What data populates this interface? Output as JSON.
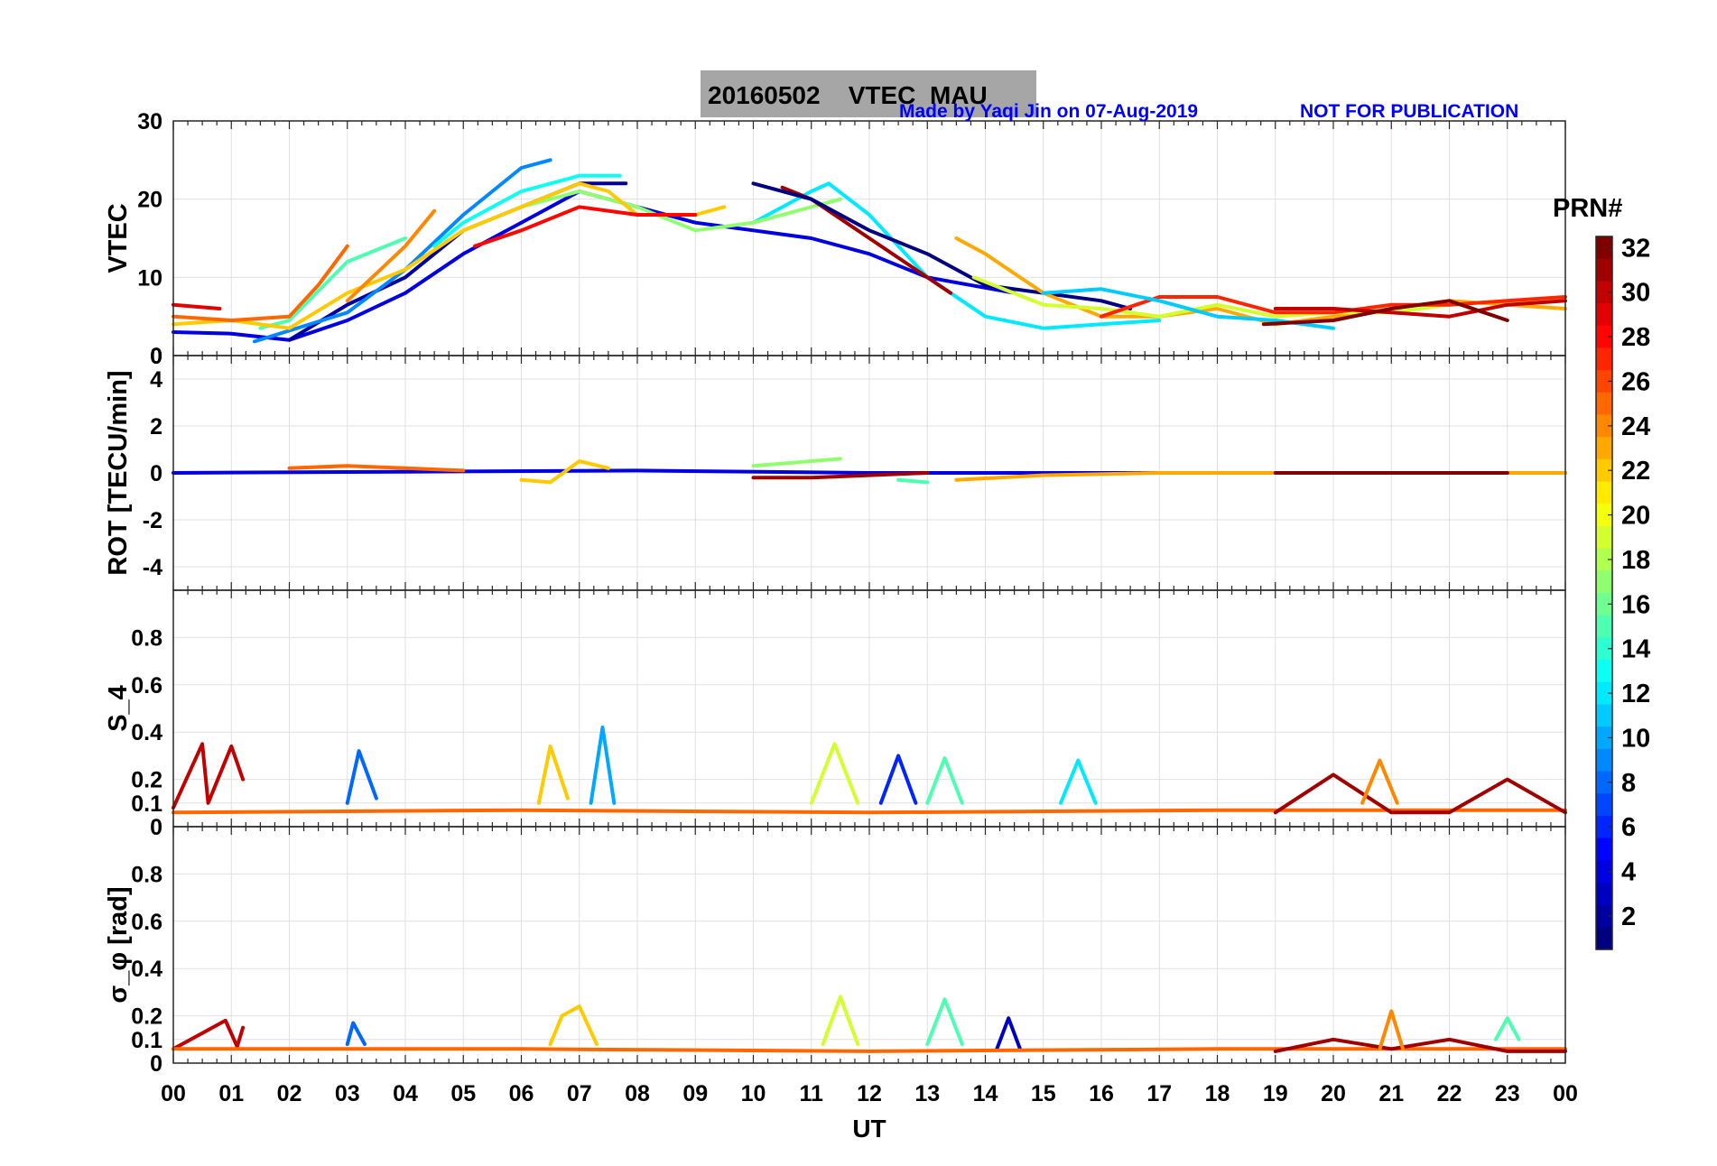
{
  "figure": {
    "title_date": "20160502",
    "title_label": "VTEC  MAU",
    "credit": "Made by Yaqi Jin on 07-Aug-2019",
    "notice": "NOT FOR PUBLICATION",
    "xlabel": "UT",
    "x_ticks": [
      "00",
      "01",
      "02",
      "03",
      "04",
      "05",
      "06",
      "07",
      "08",
      "09",
      "10",
      "11",
      "12",
      "13",
      "14",
      "15",
      "16",
      "17",
      "18",
      "19",
      "20",
      "21",
      "22",
      "23",
      "00"
    ],
    "colorbar": {
      "label": "PRN#",
      "range": [
        1,
        32
      ],
      "ticks": [
        "2",
        "4",
        "6",
        "8",
        "10",
        "12",
        "14",
        "16",
        "18",
        "20",
        "22",
        "24",
        "26",
        "28",
        "30",
        "32"
      ],
      "colormap": "jet"
    }
  },
  "chart_data": [
    {
      "type": "line",
      "panel": "vtec",
      "ylabel": "VTEC",
      "xlim": [
        0,
        24
      ],
      "ylim": [
        0,
        30
      ],
      "yticks": [
        "0",
        "10",
        "20",
        "30"
      ],
      "series": [
        {
          "prn": 4,
          "x": [
            0,
            1,
            2,
            3,
            4,
            5,
            6,
            7,
            8,
            9,
            10,
            11,
            12,
            13,
            14.5
          ],
          "y": [
            3,
            2.8,
            2,
            4.5,
            8,
            13,
            17,
            21,
            19,
            17,
            16,
            15,
            13,
            10,
            8
          ]
        },
        {
          "prn": 2,
          "x": [
            2,
            3,
            4,
            5,
            6,
            7,
            7.8
          ],
          "y": [
            2,
            6.5,
            10,
            16,
            19,
            22,
            22
          ]
        },
        {
          "prn": 9,
          "x": [
            1.4,
            3,
            4,
            5,
            6,
            6.5
          ],
          "y": [
            1.8,
            5.5,
            11,
            18,
            24,
            25
          ]
        },
        {
          "prn": 13,
          "x": [
            4.5,
            5,
            6,
            7,
            7.7
          ],
          "y": [
            14,
            17,
            21,
            23,
            23
          ]
        },
        {
          "prn": 12,
          "x": [
            10,
            11,
            11.3,
            12,
            13,
            14,
            15,
            16,
            17
          ],
          "y": [
            17,
            21,
            22,
            18,
            10,
            5,
            3.5,
            4,
            4.5
          ]
        },
        {
          "prn": 17,
          "x": [
            5,
            6,
            7,
            7.5,
            8,
            9,
            10,
            11,
            11.5
          ],
          "y": [
            16,
            19,
            21,
            20,
            19,
            16,
            17,
            19,
            20
          ]
        },
        {
          "prn": 15,
          "x": [
            1.5,
            2,
            3,
            4
          ],
          "y": [
            3.5,
            4.5,
            12,
            15
          ]
        },
        {
          "prn": 22,
          "x": [
            0,
            1,
            2,
            3,
            4,
            5,
            6,
            7,
            7.5,
            8,
            9,
            9.5
          ],
          "y": [
            4,
            4.5,
            3.5,
            8,
            11,
            16,
            19,
            22,
            21,
            18,
            18,
            19
          ]
        },
        {
          "prn": 25,
          "x": [
            0,
            1,
            2,
            2.5,
            3
          ],
          "y": [
            5,
            4.5,
            5,
            9,
            14
          ]
        },
        {
          "prn": 24,
          "x": [
            3,
            4,
            4.5
          ],
          "y": [
            7,
            14,
            18.5
          ]
        },
        {
          "prn": 28,
          "x": [
            5.2,
            6,
            7,
            8,
            9
          ],
          "y": [
            14,
            16,
            19,
            18,
            18
          ]
        },
        {
          "prn": 31,
          "x": [
            10.5,
            11,
            12,
            13,
            13.4
          ],
          "y": [
            21.5,
            20,
            15,
            10,
            8
          ]
        },
        {
          "prn": 1,
          "x": [
            10,
            11,
            12,
            13,
            14,
            15,
            16,
            16.5
          ],
          "y": [
            22,
            20,
            16,
            13,
            9,
            8,
            7,
            6
          ]
        },
        {
          "prn": 23,
          "x": [
            13.5,
            14,
            15,
            16,
            17,
            18,
            19,
            20,
            21,
            22,
            23,
            24
          ],
          "y": [
            15,
            13,
            8,
            5,
            5,
            6,
            4,
            5,
            6,
            7,
            6.5,
            6
          ]
        },
        {
          "prn": 19,
          "x": [
            13.8,
            15,
            16,
            17,
            18,
            19,
            20,
            21,
            22,
            23,
            24
          ],
          "y": [
            10,
            6.5,
            6,
            5,
            6.5,
            5,
            5.5,
            5.5,
            6.5,
            7,
            7
          ]
        },
        {
          "prn": 27,
          "x": [
            16,
            17,
            18,
            19,
            20,
            21,
            22,
            23,
            24
          ],
          "y": [
            5,
            7.5,
            7.5,
            5.5,
            5.5,
            6.5,
            6.5,
            7,
            7.5
          ]
        },
        {
          "prn": 11,
          "x": [
            15,
            16,
            17,
            18,
            19,
            20
          ],
          "y": [
            8,
            8.5,
            7,
            5,
            4.5,
            3.5
          ]
        },
        {
          "prn": 30,
          "x": [
            19,
            20,
            21,
            22,
            23,
            24
          ],
          "y": [
            6,
            6,
            5.5,
            5,
            6.5,
            7
          ]
        },
        {
          "prn": 32,
          "x": [
            18.8,
            20,
            21,
            22,
            23
          ],
          "y": [
            4,
            4.5,
            6,
            7,
            4.5
          ]
        },
        {
          "prn": 29,
          "x": [
            0,
            0.8
          ],
          "y": [
            6.5,
            6
          ]
        }
      ]
    },
    {
      "type": "line",
      "panel": "rot",
      "ylabel": "ROT [TECU/min]",
      "xlim": [
        0,
        24
      ],
      "ylim": [
        -5,
        5
      ],
      "yticks": [
        "-4",
        "-2",
        "0",
        "2",
        "4"
      ],
      "series": [
        {
          "prn": 4,
          "x": [
            0,
            4,
            8,
            12,
            16,
            20,
            24
          ],
          "y": [
            0,
            0.05,
            0.1,
            0,
            0,
            0,
            0
          ]
        },
        {
          "prn": 25,
          "x": [
            2,
            3,
            4,
            5
          ],
          "y": [
            0.2,
            0.3,
            0.2,
            0.1
          ]
        },
        {
          "prn": 22,
          "x": [
            6,
            6.5,
            7,
            7.5
          ],
          "y": [
            -0.3,
            -0.4,
            0.5,
            0.2
          ]
        },
        {
          "prn": 17,
          "x": [
            10,
            11,
            11.5
          ],
          "y": [
            0.3,
            0.5,
            0.6
          ]
        },
        {
          "prn": 31,
          "x": [
            10,
            11,
            12,
            13
          ],
          "y": [
            -0.2,
            -0.2,
            -0.1,
            0
          ]
        },
        {
          "prn": 15,
          "x": [
            12.5,
            13
          ],
          "y": [
            -0.3,
            -0.4
          ]
        },
        {
          "prn": 23,
          "x": [
            13.5,
            15,
            17,
            19,
            21,
            23,
            24
          ],
          "y": [
            -0.3,
            -0.1,
            0,
            0,
            0,
            0,
            0
          ]
        },
        {
          "prn": 32,
          "x": [
            19,
            21,
            23
          ],
          "y": [
            0,
            0,
            0
          ]
        }
      ]
    },
    {
      "type": "line",
      "panel": "s4",
      "ylabel": "S_4",
      "xlim": [
        0,
        24
      ],
      "ylim": [
        0,
        1
      ],
      "yticks": [
        "0",
        "0.1",
        "0.2",
        "0.4",
        "0.6",
        "0.8"
      ],
      "series": [
        {
          "prn": 30,
          "x": [
            0,
            0.5,
            0.6,
            1,
            1.2
          ],
          "y": [
            0.08,
            0.35,
            0.1,
            0.34,
            0.2
          ]
        },
        {
          "prn": 8,
          "x": [
            3,
            3.2,
            3.5
          ],
          "y": [
            0.1,
            0.32,
            0.12
          ]
        },
        {
          "prn": 22,
          "x": [
            6.3,
            6.5,
            6.8
          ],
          "y": [
            0.1,
            0.34,
            0.12
          ]
        },
        {
          "prn": 10,
          "x": [
            7.2,
            7.4,
            7.6
          ],
          "y": [
            0.1,
            0.42,
            0.1
          ]
        },
        {
          "prn": 19,
          "x": [
            11,
            11.4,
            11.8
          ],
          "y": [
            0.1,
            0.35,
            0.1
          ]
        },
        {
          "prn": 6,
          "x": [
            12.2,
            12.5,
            12.8
          ],
          "y": [
            0.1,
            0.3,
            0.1
          ]
        },
        {
          "prn": 15,
          "x": [
            13,
            13.3,
            13.6
          ],
          "y": [
            0.1,
            0.29,
            0.1
          ]
        },
        {
          "prn": 12,
          "x": [
            15.3,
            15.6,
            15.9
          ],
          "y": [
            0.1,
            0.28,
            0.1
          ]
        },
        {
          "prn": 25,
          "x": [
            0,
            6,
            12,
            18,
            24
          ],
          "y": [
            0.06,
            0.07,
            0.06,
            0.07,
            0.07
          ]
        },
        {
          "prn": 31,
          "x": [
            19,
            20,
            21,
            22,
            23,
            24
          ],
          "y": [
            0.06,
            0.22,
            0.06,
            0.06,
            0.2,
            0.06
          ]
        },
        {
          "prn": 24,
          "x": [
            20.5,
            20.8,
            21.1
          ],
          "y": [
            0.1,
            0.28,
            0.1
          ]
        }
      ]
    },
    {
      "type": "line",
      "panel": "sigma_phi",
      "ylabel": "σ_φ [rad]",
      "xlim": [
        0,
        24
      ],
      "ylim": [
        0,
        1
      ],
      "yticks": [
        "0",
        "0.1",
        "0.2",
        "0.4",
        "0.6",
        "0.8"
      ],
      "series": [
        {
          "prn": 30,
          "x": [
            0,
            0.9,
            1.1,
            1.2
          ],
          "y": [
            0.06,
            0.18,
            0.07,
            0.15
          ]
        },
        {
          "prn": 8,
          "x": [
            3,
            3.1,
            3.3
          ],
          "y": [
            0.08,
            0.17,
            0.08
          ]
        },
        {
          "prn": 22,
          "x": [
            6.5,
            6.7,
            7,
            7.3
          ],
          "y": [
            0.08,
            0.2,
            0.24,
            0.08
          ]
        },
        {
          "prn": 19,
          "x": [
            11.2,
            11.5,
            11.8
          ],
          "y": [
            0.08,
            0.28,
            0.08
          ]
        },
        {
          "prn": 15,
          "x": [
            13,
            13.3,
            13.6
          ],
          "y": [
            0.08,
            0.27,
            0.08
          ]
        },
        {
          "prn": 3,
          "x": [
            14.2,
            14.4,
            14.6
          ],
          "y": [
            0.06,
            0.19,
            0.06
          ]
        },
        {
          "prn": 25,
          "x": [
            0,
            6,
            12,
            18,
            24
          ],
          "y": [
            0.06,
            0.06,
            0.05,
            0.06,
            0.06
          ]
        },
        {
          "prn": 31,
          "x": [
            19,
            20,
            21,
            22,
            23,
            24
          ],
          "y": [
            0.05,
            0.1,
            0.06,
            0.1,
            0.05,
            0.05
          ]
        },
        {
          "prn": 24,
          "x": [
            20.8,
            21,
            21.2
          ],
          "y": [
            0.06,
            0.22,
            0.06
          ]
        },
        {
          "prn": 15,
          "x": [
            22.8,
            23,
            23.2
          ],
          "y": [
            0.1,
            0.19,
            0.1
          ]
        }
      ]
    }
  ]
}
